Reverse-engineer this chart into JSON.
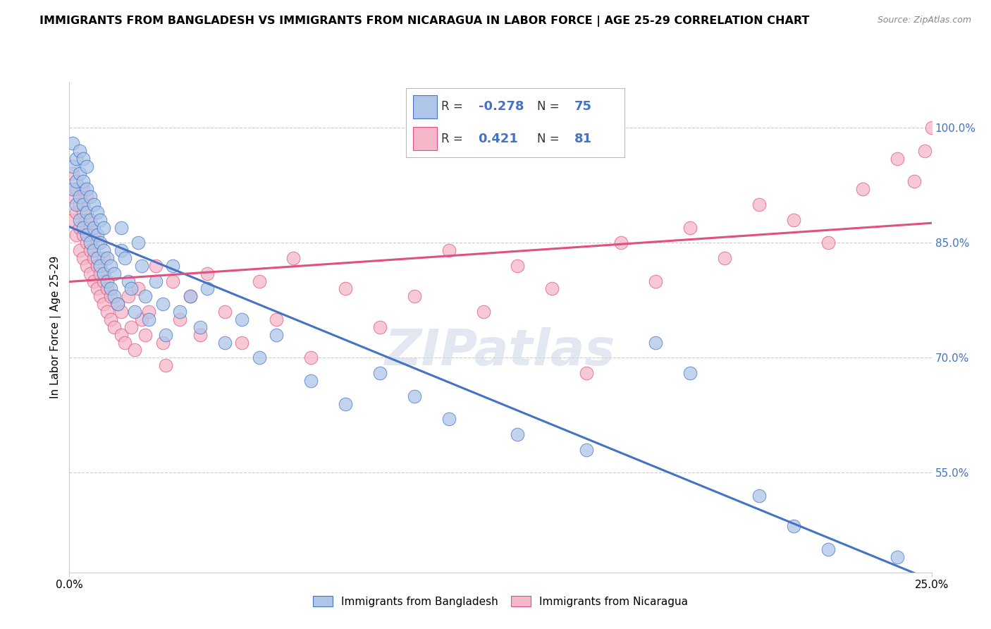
{
  "title": "IMMIGRANTS FROM BANGLADESH VS IMMIGRANTS FROM NICARAGUA IN LABOR FORCE | AGE 25-29 CORRELATION CHART",
  "source": "Source: ZipAtlas.com",
  "ylabel": "In Labor Force | Age 25-29",
  "r_bangladesh": -0.278,
  "n_bangladesh": 75,
  "r_nicaragua": 0.421,
  "n_nicaragua": 81,
  "legend_labels": [
    "Immigrants from Bangladesh",
    "Immigrants from Nicaragua"
  ],
  "color_bangladesh": "#aec6e8",
  "color_nicaragua": "#f4b8c8",
  "line_color_bangladesh": "#4472c4",
  "line_color_nicaragua": "#e05080",
  "watermark": "ZIPatlas",
  "xlim": [
    0.0,
    0.25
  ],
  "ylim": [
    0.42,
    1.06
  ],
  "yticks": [
    0.55,
    0.7,
    0.85,
    1.0
  ],
  "ytick_labels": [
    "55.0%",
    "70.0%",
    "85.0%",
    "100.0%"
  ],
  "bangladesh_x": [
    0.001,
    0.001,
    0.001,
    0.002,
    0.002,
    0.002,
    0.003,
    0.003,
    0.003,
    0.003,
    0.004,
    0.004,
    0.004,
    0.004,
    0.005,
    0.005,
    0.005,
    0.005,
    0.006,
    0.006,
    0.006,
    0.007,
    0.007,
    0.007,
    0.008,
    0.008,
    0.008,
    0.009,
    0.009,
    0.009,
    0.01,
    0.01,
    0.01,
    0.011,
    0.011,
    0.012,
    0.012,
    0.013,
    0.013,
    0.014,
    0.015,
    0.015,
    0.016,
    0.017,
    0.018,
    0.019,
    0.02,
    0.021,
    0.022,
    0.023,
    0.025,
    0.027,
    0.028,
    0.03,
    0.032,
    0.035,
    0.038,
    0.04,
    0.045,
    0.05,
    0.055,
    0.06,
    0.07,
    0.08,
    0.09,
    0.1,
    0.11,
    0.13,
    0.15,
    0.17,
    0.18,
    0.2,
    0.21,
    0.22,
    0.24
  ],
  "bangladesh_y": [
    0.92,
    0.95,
    0.98,
    0.9,
    0.93,
    0.96,
    0.88,
    0.91,
    0.94,
    0.97,
    0.87,
    0.9,
    0.93,
    0.96,
    0.86,
    0.89,
    0.92,
    0.95,
    0.85,
    0.88,
    0.91,
    0.84,
    0.87,
    0.9,
    0.83,
    0.86,
    0.89,
    0.82,
    0.85,
    0.88,
    0.81,
    0.84,
    0.87,
    0.8,
    0.83,
    0.79,
    0.82,
    0.78,
    0.81,
    0.77,
    0.84,
    0.87,
    0.83,
    0.8,
    0.79,
    0.76,
    0.85,
    0.82,
    0.78,
    0.75,
    0.8,
    0.77,
    0.73,
    0.82,
    0.76,
    0.78,
    0.74,
    0.79,
    0.72,
    0.75,
    0.7,
    0.73,
    0.67,
    0.64,
    0.68,
    0.65,
    0.62,
    0.6,
    0.58,
    0.72,
    0.68,
    0.52,
    0.48,
    0.45,
    0.44
  ],
  "nicaragua_x": [
    0.001,
    0.001,
    0.001,
    0.002,
    0.002,
    0.002,
    0.003,
    0.003,
    0.003,
    0.004,
    0.004,
    0.004,
    0.004,
    0.005,
    0.005,
    0.005,
    0.005,
    0.006,
    0.006,
    0.006,
    0.007,
    0.007,
    0.007,
    0.008,
    0.008,
    0.008,
    0.009,
    0.009,
    0.01,
    0.01,
    0.01,
    0.011,
    0.011,
    0.012,
    0.012,
    0.013,
    0.014,
    0.015,
    0.015,
    0.016,
    0.017,
    0.018,
    0.019,
    0.02,
    0.021,
    0.022,
    0.023,
    0.025,
    0.027,
    0.028,
    0.03,
    0.032,
    0.035,
    0.038,
    0.04,
    0.045,
    0.05,
    0.055,
    0.06,
    0.065,
    0.07,
    0.08,
    0.09,
    0.1,
    0.11,
    0.12,
    0.13,
    0.14,
    0.15,
    0.16,
    0.17,
    0.18,
    0.19,
    0.2,
    0.21,
    0.22,
    0.23,
    0.24,
    0.245,
    0.248,
    0.25
  ],
  "nicaragua_y": [
    0.88,
    0.91,
    0.94,
    0.86,
    0.89,
    0.92,
    0.84,
    0.87,
    0.9,
    0.83,
    0.86,
    0.89,
    0.92,
    0.82,
    0.85,
    0.88,
    0.91,
    0.81,
    0.84,
    0.87,
    0.8,
    0.83,
    0.86,
    0.79,
    0.82,
    0.85,
    0.78,
    0.81,
    0.77,
    0.8,
    0.83,
    0.76,
    0.79,
    0.75,
    0.78,
    0.74,
    0.77,
    0.73,
    0.76,
    0.72,
    0.78,
    0.74,
    0.71,
    0.79,
    0.75,
    0.73,
    0.76,
    0.82,
    0.72,
    0.69,
    0.8,
    0.75,
    0.78,
    0.73,
    0.81,
    0.76,
    0.72,
    0.8,
    0.75,
    0.83,
    0.7,
    0.79,
    0.74,
    0.78,
    0.84,
    0.76,
    0.82,
    0.79,
    0.68,
    0.85,
    0.8,
    0.87,
    0.83,
    0.9,
    0.88,
    0.85,
    0.92,
    0.96,
    0.93,
    0.97,
    1.0
  ]
}
